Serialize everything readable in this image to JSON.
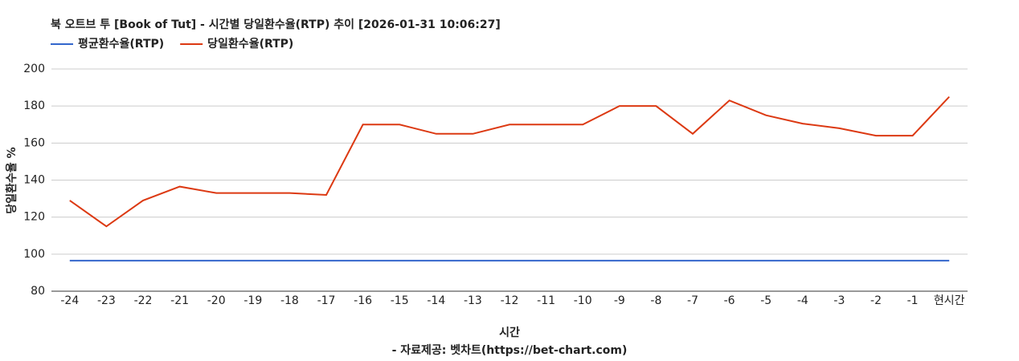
{
  "chart_data": {
    "type": "line",
    "title": "북 오트브 투 [Book of Tut] - 시간별 당일환수율(RTP) 추이 [2026-01-31 10:06:27]",
    "x_label": "시간",
    "y_label": "당일환수율 %",
    "source": "- 자료제공: 벳차트(https://bet-chart.com)",
    "categories": [
      "-24",
      "-23",
      "-22",
      "-21",
      "-20",
      "-19",
      "-18",
      "-17",
      "-16",
      "-15",
      "-14",
      "-13",
      "-12",
      "-11",
      "-10",
      "-9",
      "-8",
      "-7",
      "-6",
      "-5",
      "-4",
      "-3",
      "-2",
      "-1",
      "현시간"
    ],
    "series": [
      {
        "name": "평균환수율(RTP)",
        "color": "#3366cc",
        "values": [
          96.5,
          96.5,
          96.5,
          96.5,
          96.5,
          96.5,
          96.5,
          96.5,
          96.5,
          96.5,
          96.5,
          96.5,
          96.5,
          96.5,
          96.5,
          96.5,
          96.5,
          96.5,
          96.5,
          96.5,
          96.5,
          96.5,
          96.5,
          96.5,
          96.5
        ]
      },
      {
        "name": "당일환수율(RTP)",
        "color": "#dc3912",
        "values": [
          129,
          115,
          129,
          136.5,
          133,
          133,
          133,
          132,
          170,
          170,
          165,
          165,
          170,
          170,
          170,
          180,
          180,
          165,
          183,
          175,
          170.5,
          168,
          164,
          164,
          185
        ]
      }
    ],
    "ylim": [
      80,
      200
    ],
    "yticks": [
      80,
      100,
      120,
      140,
      160,
      180,
      200
    ],
    "grid": true
  }
}
